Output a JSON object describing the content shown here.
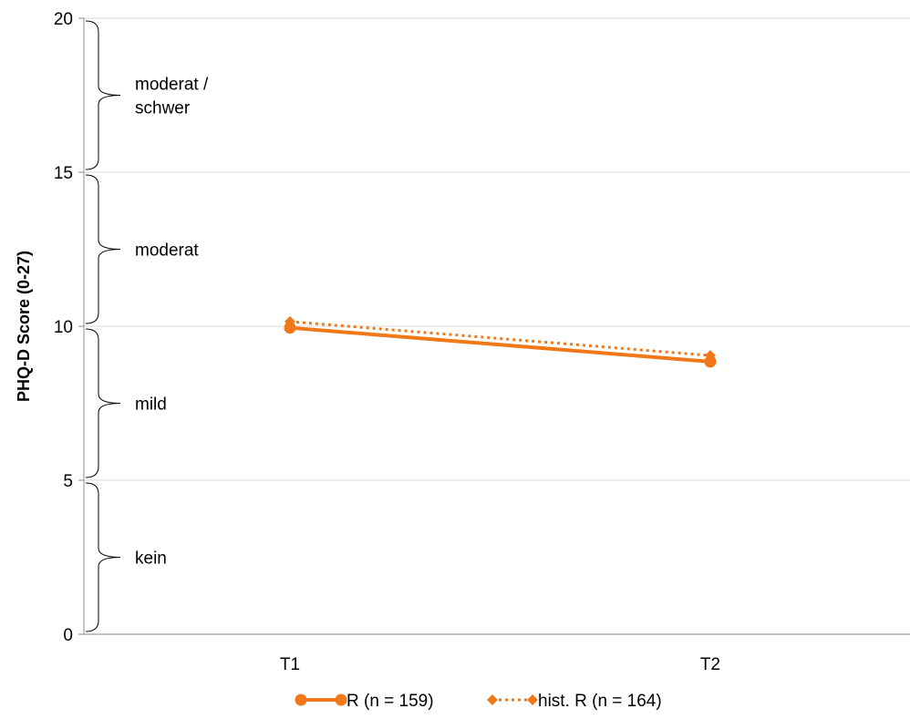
{
  "chart_data": {
    "type": "line",
    "title": "",
    "xlabel": "",
    "ylabel": "PHQ-D Score (0-27)",
    "categories": [
      "T1",
      "T2"
    ],
    "ylim": [
      0,
      20
    ],
    "yticks": [
      0,
      5,
      10,
      15,
      20
    ],
    "grid": true,
    "legend_position": "bottom",
    "series": [
      {
        "name": "R (n = 159)",
        "values": [
          9.95,
          8.85
        ],
        "color": "#F07818",
        "line_style": "solid",
        "marker": "circle"
      },
      {
        "name": "hist. R (n = 164)",
        "values": [
          10.15,
          9.05
        ],
        "color": "#F07818",
        "line_style": "dotted",
        "marker": "diamond"
      }
    ],
    "severity_bands": [
      {
        "from": 0,
        "to": 5,
        "label": "kein"
      },
      {
        "from": 5,
        "to": 10,
        "label": "mild"
      },
      {
        "from": 10,
        "to": 15,
        "label": "moderat"
      },
      {
        "from": 15,
        "to": 20,
        "label": "moderat /\nschwer"
      }
    ]
  }
}
